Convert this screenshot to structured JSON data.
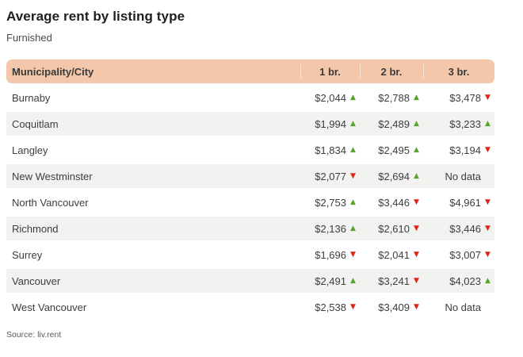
{
  "title": "Average rent by listing type",
  "subtitle": "Furnished",
  "source": "Source: liv.rent",
  "icons": {
    "up_arrow": "▲",
    "down_arrow": "▼"
  },
  "colors": {
    "header_bg": "#f3c7a9",
    "header_divider": "rgba(255,255,255,0.55)",
    "alt_row_bg": "#f2f2f0",
    "trend_up": "#5aa22b",
    "trend_down": "#e02318"
  },
  "table": {
    "header": {
      "municipality": "Municipality/City",
      "col1": "1 br.",
      "col2": "2 br.",
      "col3": "3 br."
    },
    "no_data_label": "No data",
    "rows": [
      {
        "name": "Burnaby",
        "cells": [
          {
            "text": "$2,044",
            "trend": "up"
          },
          {
            "text": "$2,788",
            "trend": "up"
          },
          {
            "text": "$3,478",
            "trend": "down"
          }
        ]
      },
      {
        "name": "Coquitlam",
        "cells": [
          {
            "text": "$1,994",
            "trend": "up"
          },
          {
            "text": "$2,489",
            "trend": "up"
          },
          {
            "text": "$3,233",
            "trend": "up"
          }
        ]
      },
      {
        "name": "Langley",
        "cells": [
          {
            "text": "$1,834",
            "trend": "up"
          },
          {
            "text": "$2,495",
            "trend": "up"
          },
          {
            "text": "$3,194",
            "trend": "down"
          }
        ]
      },
      {
        "name": "New Westminster",
        "cells": [
          {
            "text": "$2,077",
            "trend": "down"
          },
          {
            "text": "$2,694",
            "trend": "up"
          },
          {
            "text": "No data",
            "trend": "none"
          }
        ]
      },
      {
        "name": "North Vancouver",
        "cells": [
          {
            "text": "$2,753",
            "trend": "up"
          },
          {
            "text": "$3,446",
            "trend": "down"
          },
          {
            "text": "$4,961",
            "trend": "down"
          }
        ]
      },
      {
        "name": "Richmond",
        "cells": [
          {
            "text": "$2,136",
            "trend": "up"
          },
          {
            "text": "$2,610",
            "trend": "down"
          },
          {
            "text": "$3,446",
            "trend": "down"
          }
        ]
      },
      {
        "name": "Surrey",
        "cells": [
          {
            "text": "$1,696",
            "trend": "down"
          },
          {
            "text": "$2,041",
            "trend": "down"
          },
          {
            "text": "$3,007",
            "trend": "down"
          }
        ]
      },
      {
        "name": "Vancouver",
        "cells": [
          {
            "text": "$2,491",
            "trend": "up"
          },
          {
            "text": "$3,241",
            "trend": "down"
          },
          {
            "text": "$4,023",
            "trend": "up"
          }
        ]
      },
      {
        "name": "West Vancouver",
        "cells": [
          {
            "text": "$2,538",
            "trend": "down"
          },
          {
            "text": "$3,409",
            "trend": "down"
          },
          {
            "text": "No data",
            "trend": "none"
          }
        ]
      }
    ]
  },
  "chart_data": {
    "type": "table",
    "title": "Average rent by listing type",
    "subtitle": "Furnished",
    "source": "liv.rent",
    "columns": [
      "Municipality/City",
      "1 br.",
      "2 br.",
      "3 br."
    ],
    "no_data_label": "No data",
    "rows": [
      {
        "municipality": "Burnaby",
        "br_1": 2044,
        "br_1_trend": "up",
        "br_2": 2788,
        "br_2_trend": "up",
        "br_3": 3478,
        "br_3_trend": "down"
      },
      {
        "municipality": "Coquitlam",
        "br_1": 1994,
        "br_1_trend": "up",
        "br_2": 2489,
        "br_2_trend": "up",
        "br_3": 3233,
        "br_3_trend": "up"
      },
      {
        "municipality": "Langley",
        "br_1": 1834,
        "br_1_trend": "up",
        "br_2": 2495,
        "br_2_trend": "up",
        "br_3": 3194,
        "br_3_trend": "down"
      },
      {
        "municipality": "New Westminster",
        "br_1": 2077,
        "br_1_trend": "down",
        "br_2": 2694,
        "br_2_trend": "up",
        "br_3": null,
        "br_3_trend": "none"
      },
      {
        "municipality": "North Vancouver",
        "br_1": 2753,
        "br_1_trend": "up",
        "br_2": 3446,
        "br_2_trend": "down",
        "br_3": 4961,
        "br_3_trend": "down"
      },
      {
        "municipality": "Richmond",
        "br_1": 2136,
        "br_1_trend": "up",
        "br_2": 2610,
        "br_2_trend": "down",
        "br_3": 3446,
        "br_3_trend": "down"
      },
      {
        "municipality": "Surrey",
        "br_1": 1696,
        "br_1_trend": "down",
        "br_2": 2041,
        "br_2_trend": "down",
        "br_3": 3007,
        "br_3_trend": "down"
      },
      {
        "municipality": "Vancouver",
        "br_1": 2491,
        "br_1_trend": "up",
        "br_2": 3241,
        "br_2_trend": "down",
        "br_3": 4023,
        "br_3_trend": "up"
      },
      {
        "municipality": "West Vancouver",
        "br_1": 2538,
        "br_1_trend": "down",
        "br_2": 3409,
        "br_2_trend": "down",
        "br_3": null,
        "br_3_trend": "none"
      }
    ]
  }
}
